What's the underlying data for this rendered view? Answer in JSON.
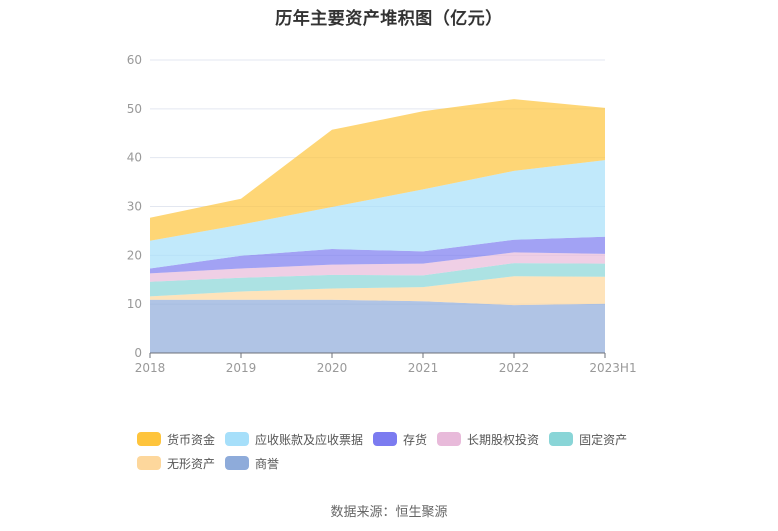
{
  "chart_data": {
    "type": "area",
    "stacked": true,
    "title": "历年主要资产堆积图（亿元）",
    "xlabel": "",
    "ylabel": "",
    "categories": [
      "2018",
      "2019",
      "2020",
      "2021",
      "2022",
      "2023H1"
    ],
    "ylim": [
      0,
      60
    ],
    "yticks": [
      0,
      10,
      20,
      30,
      40,
      50,
      60
    ],
    "grid": true,
    "legend_position": "bottom",
    "series": [
      {
        "name": "商誉",
        "color": "#8eabda",
        "values": [
          10.9,
          10.9,
          10.9,
          10.6,
          9.8,
          10.1
        ]
      },
      {
        "name": "无形资产",
        "color": "#fdd79c",
        "values": [
          0.7,
          1.7,
          2.3,
          2.9,
          5.9,
          5.5
        ]
      },
      {
        "name": "固定资产",
        "color": "#89d5d7",
        "values": [
          3.0,
          2.8,
          2.8,
          2.4,
          2.7,
          2.7
        ]
      },
      {
        "name": "长期股权投资",
        "color": "#e8bada",
        "values": [
          1.7,
          1.9,
          2.1,
          2.4,
          2.2,
          2.0
        ]
      },
      {
        "name": "存货",
        "color": "#7b7bf0",
        "values": [
          1.0,
          2.6,
          3.2,
          2.5,
          2.6,
          3.5
        ]
      },
      {
        "name": "应收账款及应收票据",
        "color": "#a6dffa",
        "values": [
          5.7,
          6.4,
          8.6,
          12.7,
          14.1,
          15.7
        ]
      },
      {
        "name": "货币资金",
        "color": "#fec43c",
        "values": [
          4.7,
          5.3,
          15.8,
          16.0,
          14.7,
          10.7
        ]
      }
    ],
    "legend_order": [
      "货币资金",
      "应收账款及应收票据",
      "存货",
      "长期股权投资",
      "固定资产",
      "无形资产",
      "商誉"
    ]
  },
  "source": "数据来源：恒生聚源"
}
